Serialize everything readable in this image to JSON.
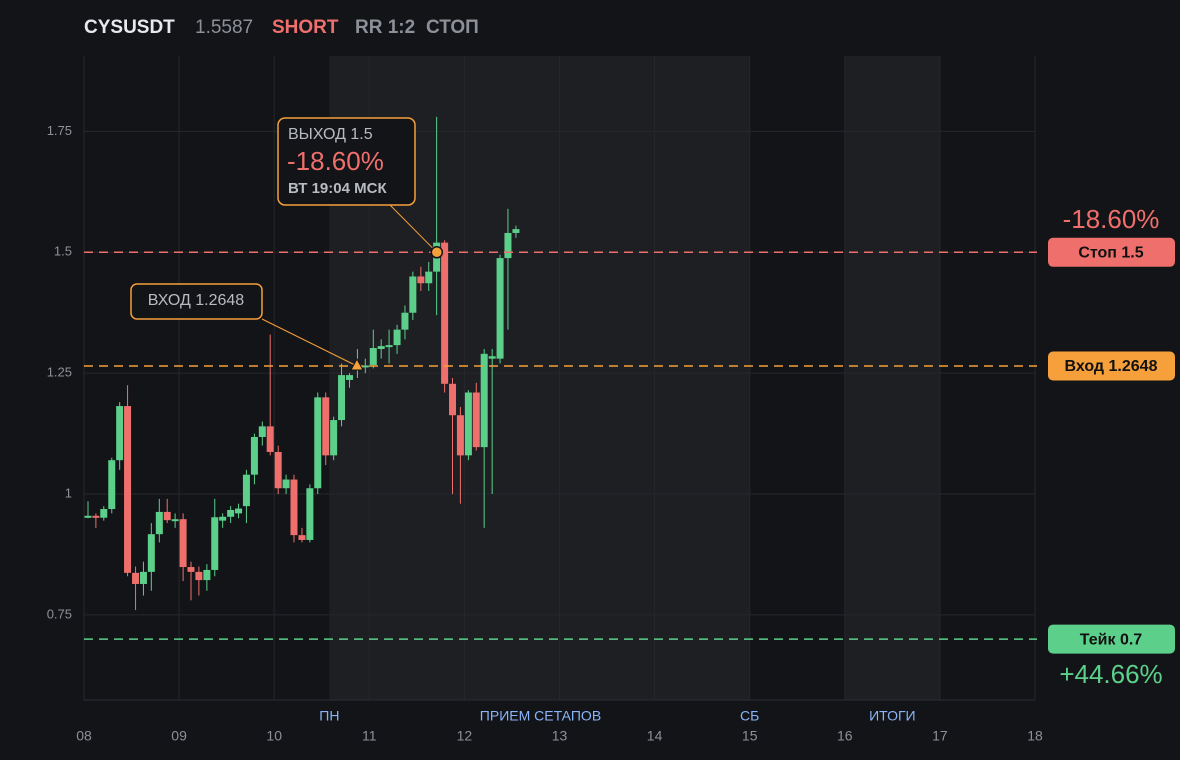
{
  "header": {
    "symbol": "CYSUSDT",
    "price": "1.5587",
    "side": "SHORT",
    "rr": "RR 1:2",
    "status": "СТОП"
  },
  "chart_data": {
    "type": "candlestick",
    "up_color": "#5cd08b",
    "down_color": "#ef6f6c",
    "x": [
      8.042,
      8.125,
      8.208,
      8.292,
      8.375,
      8.458,
      8.542,
      8.625,
      8.708,
      8.792,
      8.875,
      8.958,
      9.042,
      9.125,
      9.208,
      9.292,
      9.375,
      9.458,
      9.542,
      9.625,
      9.708,
      9.792,
      9.875,
      9.958,
      10.042,
      10.125,
      10.208,
      10.292,
      10.375,
      10.458,
      10.542,
      10.625,
      10.708,
      10.792,
      10.875,
      10.958,
      11.042,
      11.125,
      11.208,
      11.292,
      11.375,
      11.458,
      11.542,
      11.625,
      11.708,
      11.792,
      11.875,
      11.958,
      12.042,
      12.125,
      12.208,
      12.292,
      12.375,
      12.458,
      12.542
    ],
    "open": [
      0.953,
      0.955,
      0.951,
      0.969,
      1.07,
      1.182,
      0.837,
      0.814,
      0.839,
      0.917,
      0.963,
      0.946,
      0.948,
      0.849,
      0.839,
      0.822,
      0.843,
      0.945,
      0.953,
      0.96,
      0.975,
      1.04,
      1.118,
      1.14,
      1.087,
      1.012,
      1.03,
      0.915,
      0.905,
      1.012,
      1.2,
      1.08,
      1.153,
      1.236,
      1.262,
      1.263,
      1.267,
      1.3,
      1.305,
      1.308,
      1.34,
      1.375,
      1.45,
      1.436,
      1.46,
      1.52,
      1.228,
      1.163,
      1.08,
      1.21,
      1.097,
      1.28,
      1.28,
      1.488,
      1.54
    ],
    "high": [
      0.985,
      0.96,
      0.975,
      1.075,
      1.19,
      1.225,
      0.85,
      0.86,
      0.94,
      0.99,
      0.99,
      0.96,
      0.96,
      0.86,
      0.85,
      0.855,
      0.99,
      0.96,
      0.975,
      0.98,
      1.05,
      1.125,
      1.15,
      1.33,
      1.1,
      1.04,
      1.04,
      0.93,
      1.02,
      1.21,
      1.21,
      1.16,
      1.27,
      1.25,
      1.3,
      1.28,
      1.34,
      1.32,
      1.34,
      1.35,
      1.39,
      1.46,
      1.47,
      1.48,
      1.78,
      1.525,
      1.24,
      1.18,
      1.215,
      1.23,
      1.3,
      1.3,
      1.495,
      1.59,
      1.555
    ],
    "low": [
      0.95,
      0.93,
      0.945,
      0.96,
      1.05,
      0.83,
      0.76,
      0.79,
      0.8,
      0.9,
      0.94,
      0.93,
      0.82,
      0.78,
      0.79,
      0.8,
      0.83,
      0.93,
      0.94,
      0.95,
      0.94,
      1.02,
      1.1,
      1.08,
      1.0,
      1.0,
      0.9,
      0.9,
      0.9,
      1.0,
      1.06,
      1.07,
      1.14,
      1.22,
      1.24,
      1.25,
      1.26,
      1.28,
      1.27,
      1.29,
      1.32,
      1.36,
      1.42,
      1.42,
      1.37,
      1.21,
      1.0,
      0.98,
      1.07,
      1.09,
      0.93,
      1.0,
      1.27,
      1.34,
      1.53
    ],
    "close": [
      0.955,
      0.952,
      0.969,
      1.07,
      1.182,
      0.837,
      0.814,
      0.839,
      0.917,
      0.963,
      0.946,
      0.948,
      0.849,
      0.839,
      0.822,
      0.843,
      0.952,
      0.953,
      0.967,
      0.97,
      1.04,
      1.118,
      1.14,
      1.087,
      1.012,
      1.03,
      0.915,
      0.905,
      1.012,
      1.2,
      1.08,
      1.153,
      1.246,
      1.246,
      1.268,
      1.266,
      1.302,
      1.306,
      1.308,
      1.34,
      1.375,
      1.45,
      1.436,
      1.46,
      1.52,
      1.228,
      1.163,
      1.08,
      1.21,
      1.097,
      1.29,
      1.285,
      1.488,
      1.54,
      1.548
    ],
    "xlim": [
      8,
      18
    ],
    "xticks": [
      {
        "value": 8,
        "label": "08"
      },
      {
        "value": 9,
        "label": "09"
      },
      10,
      11,
      12,
      13,
      14,
      15,
      16,
      17,
      18
    ],
    "ylim": [
      0.574,
      1.906
    ],
    "yticks": [
      0.75,
      1,
      1.25,
      1.5,
      1.75
    ],
    "grid": true,
    "sessions": [
      {
        "from": 10.58,
        "to": 15
      },
      {
        "from": 16,
        "to": 17
      }
    ],
    "session_labels": [
      {
        "x": 10.58,
        "label": "ПН"
      },
      {
        "x": 12.8,
        "label": "ПРИЕМ СЕТАПОВ"
      },
      {
        "x": 15,
        "label": "СБ"
      },
      {
        "x": 16.5,
        "label": "ИТОГИ"
      }
    ],
    "levels": [
      {
        "label": "Стоп 1.5",
        "value": 1.5,
        "color": "#ef6f6c",
        "pct": "-18.60%"
      },
      {
        "label": "Вход 1.2648",
        "value": 1.2648,
        "color": "#f5a03a"
      },
      {
        "label": "Тейк 0.7",
        "value": 0.7,
        "color": "#5cd08b",
        "pct": "+44.66%"
      }
    ],
    "entry": {
      "label": "ВХОД 1.2648",
      "x": 10.87,
      "y": 1.2648
    },
    "exit": {
      "label": "ВЫХОД 1.5",
      "pct": "-18.60%",
      "time": "ВТ 19:04 МСК",
      "x": 11.71,
      "y": 1.5
    }
  }
}
